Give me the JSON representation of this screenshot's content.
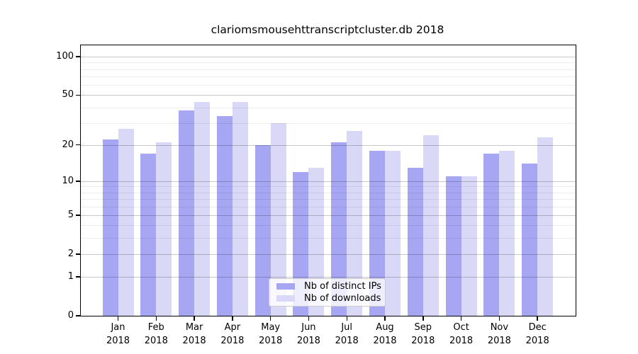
{
  "title": "clariomsmousehttranscriptcluster.db 2018",
  "chart_data": {
    "type": "bar",
    "title": "clariomsmousehttranscriptcluster.db 2018",
    "xlabel": "",
    "ylabel": "",
    "y_scale": "log1p",
    "ylim": [
      0,
      122
    ],
    "grid": "on",
    "legend_position": "bottom-center",
    "categories": [
      "Jan",
      "Feb",
      "Mar",
      "Apr",
      "May",
      "Jun",
      "Jul",
      "Aug",
      "Sep",
      "Oct",
      "Nov",
      "Dec"
    ],
    "x_year_label": "2018",
    "y_ticks": [
      100,
      50,
      20,
      10,
      5,
      2,
      1,
      0
    ],
    "y_major_gridlines": [
      100,
      50,
      20,
      10,
      5,
      2,
      1
    ],
    "y_minor_gridlines": [
      90,
      80,
      70,
      60,
      40,
      30,
      9,
      8,
      7,
      6,
      4,
      3
    ],
    "series": [
      {
        "name": "Nb of distinct IPs",
        "color": "#a6a6f2",
        "values": [
          22,
          17,
          38,
          34,
          20,
          12,
          21,
          18,
          13,
          11,
          17,
          14
        ]
      },
      {
        "name": "Nb of downloads",
        "color": "#d9d9f7",
        "values": [
          27,
          21,
          44,
          44,
          30,
          13,
          26,
          18,
          24,
          11,
          18,
          23
        ]
      }
    ]
  },
  "colors": {
    "background": "#ffffff",
    "axis": "#000000",
    "major_grid": "rgba(0,0,0,0.22)",
    "minor_grid": "rgba(0,0,0,0.07)",
    "legend_border": "#cccccc"
  }
}
